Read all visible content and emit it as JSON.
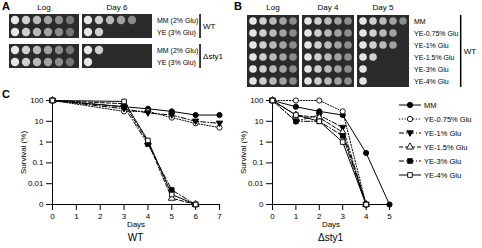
{
  "panels": [
    {
      "label": "A",
      "columns": [
        "Log",
        "Day 6"
      ],
      "groups": [
        {
          "name": "WT",
          "rows": [
            {
              "label": "MM (2% Glu)",
              "spots": [
                6,
                5
              ]
            },
            {
              "label": "YE (3% Glu)",
              "spots": [
                6,
                2
              ]
            }
          ]
        },
        {
          "name": "Δsty1",
          "rows": [
            {
              "label": "MM (2% Glu)",
              "spots": [
                6,
                2
              ]
            },
            {
              "label": "YE (3% Glu)",
              "spots": [
                6,
                1
              ]
            }
          ]
        }
      ]
    },
    {
      "label": "B",
      "columns": [
        "Log",
        "Day 4",
        "Day 5"
      ],
      "groups": [
        {
          "name": "WT",
          "rows": [
            {
              "label": "MM",
              "spots": [
                5,
                5,
                5
              ]
            },
            {
              "label": "YE-0.75% Glu",
              "spots": [
                5,
                5,
                4
              ]
            },
            {
              "label": "YE-1% Glu",
              "spots": [
                5,
                5,
                4
              ]
            },
            {
              "label": "YE-1.5% Glu",
              "spots": [
                5,
                5,
                2
              ]
            },
            {
              "label": "YE-3% Glu",
              "spots": [
                5,
                5,
                1
              ]
            },
            {
              "label": "YE-4% Glu",
              "spots": [
                5,
                5,
                1
              ]
            }
          ]
        }
      ]
    }
  ],
  "chart_label": "C",
  "chart_data": [
    {
      "type": "line",
      "title": "WT",
      "x_label": "Days",
      "y_label": "Survival (%)",
      "log": "y",
      "xlim": [
        0,
        7
      ],
      "xticks": [
        0,
        1,
        2,
        3,
        4,
        5,
        6,
        7
      ],
      "ylim": [
        0.001,
        100
      ],
      "yticks": [
        {
          "value": 0.001,
          "label": "0"
        },
        0.01,
        0.1,
        1,
        10,
        100
      ],
      "series": [
        {
          "name": "MM",
          "color": "#000000",
          "marker": "circle",
          "line_style": "solid",
          "x": [
            0,
            3,
            4,
            5,
            6,
            7
          ],
          "values": [
            100,
            50,
            40,
            30,
            20,
            20
          ]
        },
        {
          "name": "YE-0.75% Glu",
          "color": "#000000",
          "marker": "circle-open",
          "line_style": "dotted",
          "x": [
            0,
            3,
            4,
            5,
            6,
            7
          ],
          "values": [
            100,
            30,
            30,
            15,
            8,
            5
          ]
        },
        {
          "name": "YE-1% Glu",
          "color": "#000000",
          "marker": "triangle-down",
          "line_style": "dashdot",
          "x": [
            0,
            3,
            4,
            5,
            6,
            7
          ],
          "values": [
            100,
            40,
            25,
            20,
            10,
            8
          ]
        },
        {
          "name": "YE-1.5% Glu",
          "color": "#000000",
          "marker": "triangle-open",
          "line_style": "dashed",
          "x": [
            0,
            3,
            4,
            5,
            6
          ],
          "values": [
            100,
            70,
            1,
            0.002,
            0.001
          ]
        },
        {
          "name": "YE-3% Glu",
          "color": "#000000",
          "marker": "square",
          "line_style": "dashdot",
          "x": [
            0,
            3,
            4,
            5,
            6
          ],
          "values": [
            100,
            50,
            0.8,
            0.005,
            0.001
          ]
        },
        {
          "name": "YE-4% Glu",
          "color": "#000000",
          "marker": "square-open",
          "line_style": "solid",
          "x": [
            0,
            3,
            4,
            5,
            6
          ],
          "values": [
            100,
            90,
            1.2,
            0.003,
            0.001
          ]
        }
      ]
    },
    {
      "type": "line",
      "title": "Δsty1",
      "x_label": "Days",
      "y_label": "Survival (%)",
      "log": "y",
      "xlim": [
        0,
        5
      ],
      "xticks": [
        0,
        1,
        2,
        3,
        4,
        5
      ],
      "ylim": [
        0.001,
        100
      ],
      "yticks": [
        {
          "value": 0.001,
          "label": "0"
        },
        0.01,
        0.1,
        1,
        10,
        100
      ],
      "legend": "right",
      "series": [
        {
          "name": "MM",
          "color": "#000000",
          "marker": "circle",
          "line_style": "solid",
          "x": [
            0,
            1,
            2,
            3,
            4,
            5
          ],
          "values": [
            100,
            50,
            30,
            20,
            0.3,
            0.001
          ]
        },
        {
          "name": "YE-0.75% Glu",
          "color": "#000000",
          "marker": "circle-open",
          "line_style": "dotted",
          "x": [
            0,
            1,
            2,
            3,
            4
          ],
          "values": [
            100,
            100,
            100,
            30,
            0.001
          ]
        },
        {
          "name": "YE-1% Glu",
          "color": "#000000",
          "marker": "triangle-down",
          "line_style": "dashdot",
          "x": [
            0,
            1,
            2,
            3,
            4
          ],
          "values": [
            100,
            10,
            20,
            5,
            0.001
          ]
        },
        {
          "name": "YE-1.5% Glu",
          "color": "#000000",
          "marker": "triangle-open",
          "line_style": "dashed",
          "x": [
            0,
            1,
            2,
            3,
            4
          ],
          "values": [
            100,
            20,
            15,
            3,
            0.001
          ]
        },
        {
          "name": "YE-3% Glu",
          "color": "#000000",
          "marker": "square",
          "line_style": "dashdot",
          "x": [
            0,
            1,
            2,
            3,
            4
          ],
          "values": [
            100,
            10,
            10,
            2,
            0.001
          ]
        },
        {
          "name": "YE-4% Glu",
          "color": "#000000",
          "marker": "square-open",
          "line_style": "solid",
          "x": [
            0,
            1,
            2,
            3,
            4
          ],
          "values": [
            100,
            20,
            10,
            1,
            0.001
          ]
        }
      ]
    }
  ]
}
